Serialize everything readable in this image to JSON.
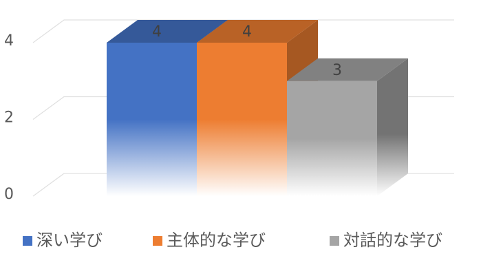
{
  "chart_data": {
    "type": "bar",
    "style": "3d-column",
    "categories": [
      ""
    ],
    "series": [
      {
        "name": "深い学び",
        "values": [
          4
        ],
        "color": "#4472C4"
      },
      {
        "name": "主体的な学び",
        "values": [
          4
        ],
        "color": "#ED7D31"
      },
      {
        "name": "対話的な学び",
        "values": [
          3
        ],
        "color": "#A5A5A5"
      }
    ],
    "title": "",
    "xlabel": "",
    "ylabel": "",
    "ylim": [
      0,
      4
    ],
    "yticks": [
      0,
      2,
      4
    ],
    "data_labels": [
      "4",
      "4",
      "3"
    ],
    "grid": true,
    "legend_position": "bottom"
  }
}
